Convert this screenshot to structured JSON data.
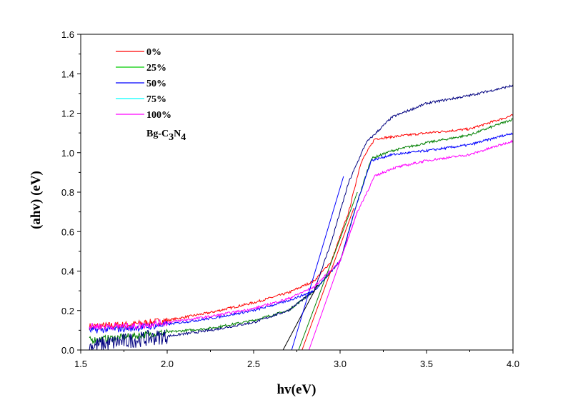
{
  "chart_data": {
    "type": "line",
    "title": "",
    "xlabel": "hv(eV)",
    "ylabel": "(ahv) (eV)",
    "xlim": [
      1.5,
      4.0
    ],
    "ylim": [
      0.0,
      1.6
    ],
    "xticks": [
      "1.5",
      "2.0",
      "2.5",
      "3.0",
      "3.5",
      "4.0"
    ],
    "yticks": [
      "0.0",
      "0.2",
      "0.4",
      "0.6",
      "0.8",
      "1.0",
      "1.2",
      "1.4",
      "1.6"
    ],
    "grid": false,
    "legend_position": "top-left",
    "legend_note": "Bg-C3N4",
    "series": [
      {
        "name": "0%",
        "legend_color": "#ff0000",
        "color": "#ff0000",
        "x": [
          1.55,
          1.8,
          2.0,
          2.25,
          2.5,
          2.7,
          2.85,
          2.95,
          3.05,
          3.12,
          3.2,
          3.5,
          3.75,
          4.0
        ],
        "y": [
          0.12,
          0.13,
          0.15,
          0.19,
          0.24,
          0.29,
          0.35,
          0.45,
          0.7,
          0.95,
          1.07,
          1.1,
          1.12,
          1.19
        ]
      },
      {
        "name": "25%",
        "legend_color": "#00cc00",
        "color": "#008000",
        "x": [
          1.55,
          1.8,
          2.0,
          2.25,
          2.5,
          2.7,
          2.85,
          3.0,
          3.1,
          3.18,
          3.3,
          3.5,
          3.75,
          4.0
        ],
        "y": [
          0.05,
          0.07,
          0.09,
          0.11,
          0.15,
          0.2,
          0.3,
          0.45,
          0.75,
          0.97,
          1.01,
          1.05,
          1.09,
          1.17
        ]
      },
      {
        "name": "50%",
        "legend_color": "#0000ff",
        "color": "#000080",
        "x": [
          1.55,
          1.8,
          2.0,
          2.25,
          2.5,
          2.7,
          2.85,
          2.95,
          3.05,
          3.15,
          3.3,
          3.5,
          3.75,
          4.0
        ],
        "y": [
          0.02,
          0.05,
          0.07,
          0.1,
          0.14,
          0.2,
          0.3,
          0.55,
          0.85,
          1.05,
          1.18,
          1.25,
          1.29,
          1.34
        ]
      },
      {
        "name": "75%",
        "legend_color": "#00ffff",
        "color": "#0000ff",
        "x": [
          1.55,
          1.8,
          2.0,
          2.25,
          2.5,
          2.7,
          2.85,
          3.0,
          3.1,
          3.18,
          3.3,
          3.5,
          3.75,
          4.0
        ],
        "y": [
          0.1,
          0.11,
          0.13,
          0.16,
          0.2,
          0.25,
          0.3,
          0.45,
          0.75,
          0.96,
          0.99,
          1.01,
          1.04,
          1.1
        ]
      },
      {
        "name": "100%",
        "legend_color": "#ff00ff",
        "color": "#ff00ff",
        "x": [
          1.55,
          1.8,
          2.0,
          2.25,
          2.5,
          2.7,
          2.85,
          3.0,
          3.1,
          3.2,
          3.3,
          3.5,
          3.75,
          4.0
        ],
        "y": [
          0.12,
          0.12,
          0.14,
          0.17,
          0.21,
          0.26,
          0.32,
          0.45,
          0.7,
          0.88,
          0.92,
          0.96,
          0.99,
          1.06
        ]
      }
    ],
    "tangent_lines": [
      {
        "color": "#000000",
        "x": [
          2.67,
          2.87
        ],
        "y": [
          0.0,
          0.33
        ]
      },
      {
        "color": "#0000ff",
        "x": [
          2.72,
          3.02
        ],
        "y": [
          0.0,
          0.88
        ]
      },
      {
        "color": "#008000",
        "x": [
          2.76,
          3.1
        ],
        "y": [
          0.0,
          0.8
        ]
      },
      {
        "color": "#ff0000",
        "x": [
          2.78,
          3.08
        ],
        "y": [
          0.0,
          0.72
        ]
      },
      {
        "color": "#ff00ff",
        "x": [
          2.82,
          3.1
        ],
        "y": [
          0.0,
          0.7
        ]
      }
    ]
  }
}
